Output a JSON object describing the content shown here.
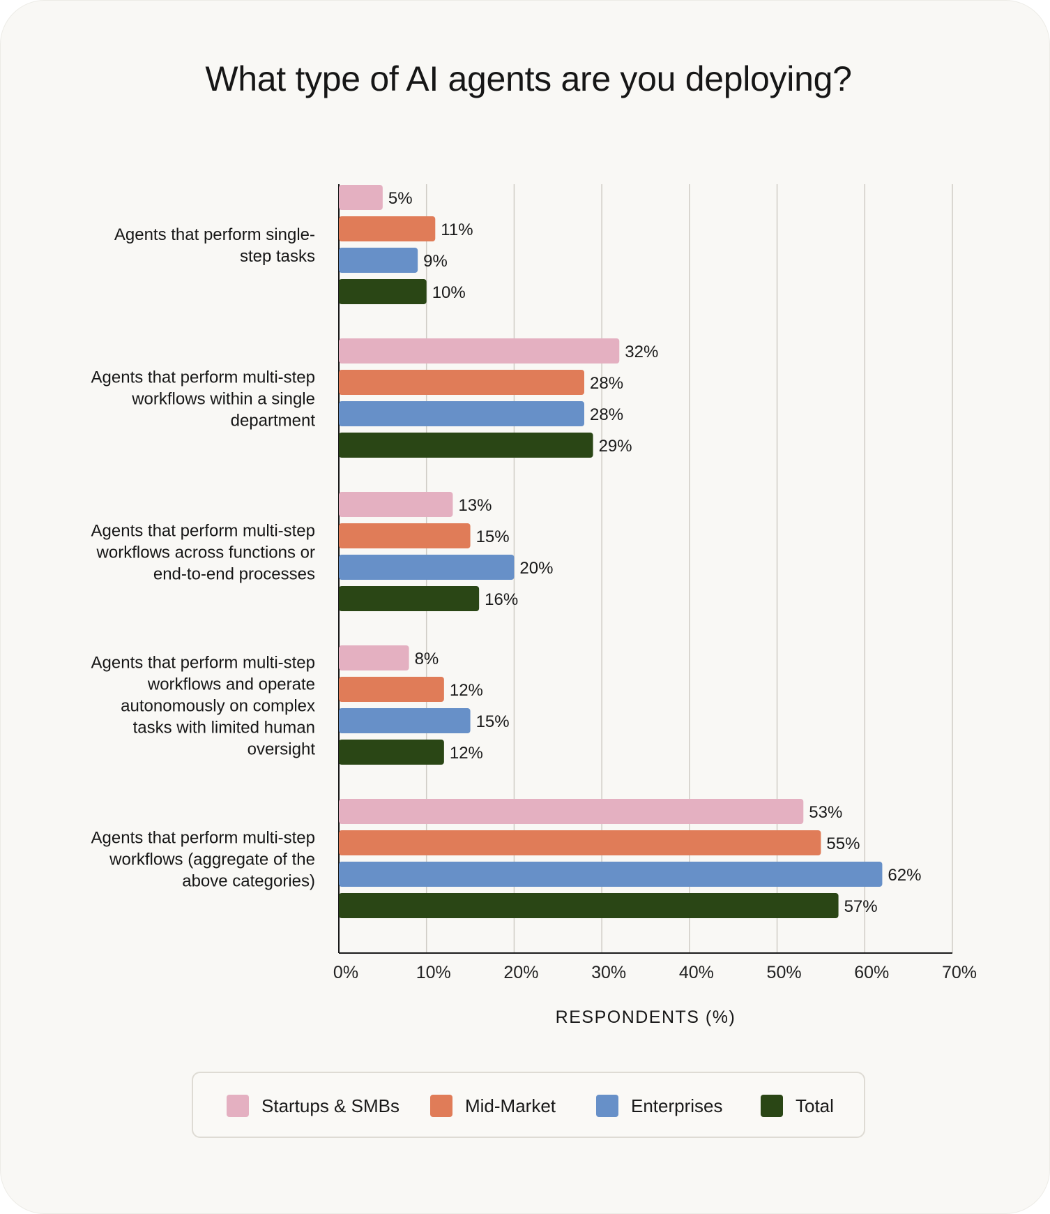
{
  "chart_data": {
    "type": "bar",
    "orientation": "horizontal",
    "title": "What type of AI agents are you deploying?",
    "xlabel": "RESPONDENTS (%)",
    "ylabel": "",
    "xlim": [
      0,
      70
    ],
    "x_ticks": [
      "0%",
      "10%",
      "20%",
      "30%",
      "40%",
      "50%",
      "60%",
      "70%"
    ],
    "grid": true,
    "legend_position": "bottom",
    "categories": [
      [
        "Agents that perform single-",
        "step tasks"
      ],
      [
        "Agents that perform multi-step",
        "workflows within a single",
        "department"
      ],
      [
        "Agents that perform multi-step",
        "workflows across functions or",
        "end-to-end processes"
      ],
      [
        "Agents that perform multi-step",
        "workflows and operate",
        "autonomously on complex",
        "tasks with limited human",
        "oversight"
      ],
      [
        "Agents that perform multi-step",
        "workflows (aggregate of the",
        "above categories)"
      ]
    ],
    "series": [
      {
        "name": "Startups & SMBs",
        "color": "#e4b0c1",
        "values": [
          5,
          32,
          13,
          8,
          53
        ],
        "labels": [
          "5%",
          "32%",
          "13%",
          "8%",
          "53%"
        ]
      },
      {
        "name": "Mid-Market",
        "color": "#e07c58",
        "values": [
          11,
          28,
          15,
          12,
          55
        ],
        "labels": [
          "11%",
          "28%",
          "15%",
          "12%",
          "55%"
        ]
      },
      {
        "name": "Enterprises",
        "color": "#6790c8",
        "values": [
          9,
          28,
          20,
          15,
          62
        ],
        "labels": [
          "9%",
          "28%",
          "20%",
          "15%",
          "62%"
        ]
      },
      {
        "name": "Total",
        "color": "#2a4615",
        "values": [
          10,
          29,
          16,
          12,
          57
        ],
        "labels": [
          "10%",
          "29%",
          "16%",
          "12%",
          "57%"
        ]
      }
    ]
  },
  "legend": {
    "items": [
      {
        "label": "Startups & SMBs",
        "color": "#e4b0c1"
      },
      {
        "label": "Mid-Market",
        "color": "#e07c58"
      },
      {
        "label": "Enterprises",
        "color": "#6790c8"
      },
      {
        "label": "Total",
        "color": "#2a4615"
      }
    ]
  }
}
